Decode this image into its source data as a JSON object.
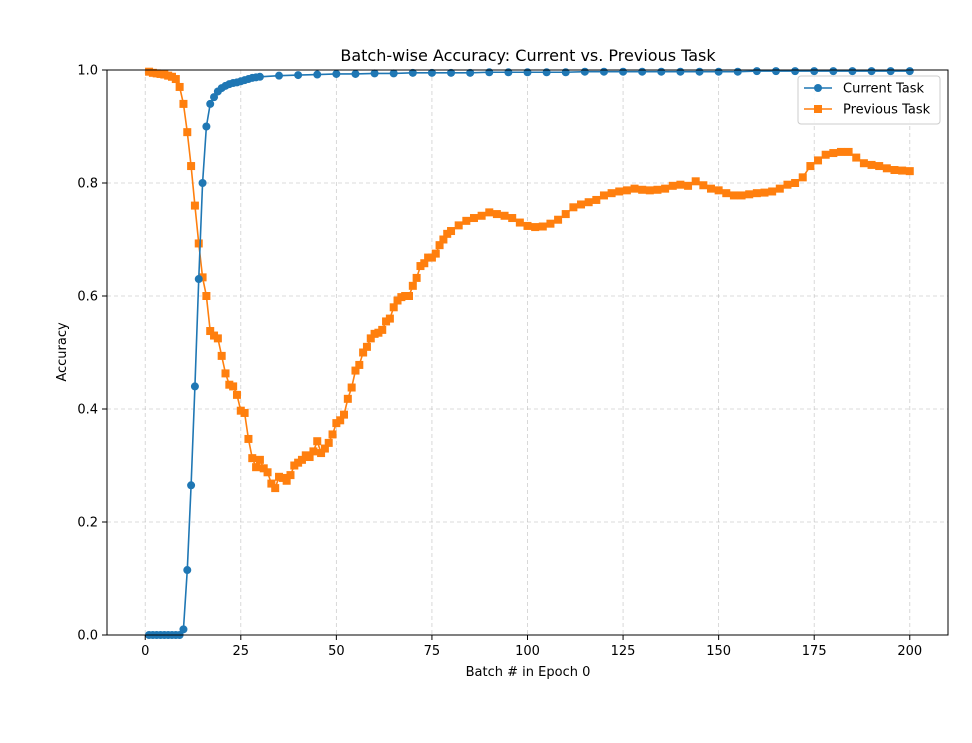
{
  "chart_data": {
    "type": "line",
    "title": "Batch-wise Accuracy: Current vs. Previous Task",
    "xlabel": "Batch # in Epoch 0",
    "ylabel": "Accuracy",
    "xlim": [
      -10,
      210
    ],
    "ylim": [
      0,
      1.0
    ],
    "xticks": [
      0,
      25,
      50,
      75,
      100,
      125,
      150,
      175,
      200
    ],
    "yticks": [
      0.0,
      0.2,
      0.4,
      0.6,
      0.8,
      1.0
    ],
    "xtick_labels": [
      "0",
      "25",
      "50",
      "75",
      "100",
      "125",
      "150",
      "175",
      "200"
    ],
    "ytick_labels": [
      "0.0",
      "0.2",
      "0.4",
      "0.6",
      "0.8",
      "1.0"
    ],
    "grid": true,
    "legend_position": "top-right",
    "series": [
      {
        "name": "Current Task",
        "color": "#1f77b4",
        "marker": "circle",
        "x": [
          1,
          2,
          3,
          4,
          5,
          6,
          7,
          8,
          9,
          10,
          11,
          12,
          13,
          14,
          15,
          16,
          17,
          18,
          19,
          20,
          21,
          22,
          23,
          24,
          25,
          26,
          27,
          28,
          29,
          30,
          35,
          40,
          45,
          50,
          55,
          60,
          65,
          70,
          75,
          80,
          85,
          90,
          95,
          100,
          105,
          110,
          115,
          120,
          125,
          130,
          135,
          140,
          145,
          150,
          155,
          160,
          165,
          170,
          175,
          180,
          185,
          190,
          195,
          200
        ],
        "values": [
          0.0,
          0.0,
          0.0,
          0.0,
          0.0,
          0.0,
          0.0,
          0.0,
          0.0,
          0.01,
          0.115,
          0.265,
          0.44,
          0.63,
          0.8,
          0.9,
          0.94,
          0.952,
          0.962,
          0.968,
          0.972,
          0.975,
          0.977,
          0.978,
          0.98,
          0.982,
          0.984,
          0.986,
          0.987,
          0.988,
          0.99,
          0.991,
          0.992,
          0.993,
          0.993,
          0.994,
          0.994,
          0.995,
          0.995,
          0.995,
          0.995,
          0.996,
          0.996,
          0.996,
          0.996,
          0.996,
          0.997,
          0.997,
          0.997,
          0.997,
          0.997,
          0.997,
          0.997,
          0.997,
          0.997,
          0.998,
          0.998,
          0.998,
          0.998,
          0.998,
          0.998,
          0.998,
          0.998,
          0.998
        ]
      },
      {
        "name": "Previous Task",
        "color": "#ff7f0e",
        "marker": "square",
        "x": [
          1,
          2,
          3,
          4,
          5,
          6,
          7,
          8,
          9,
          10,
          11,
          12,
          13,
          14,
          15,
          16,
          17,
          18,
          19,
          20,
          21,
          22,
          23,
          24,
          25,
          26,
          27,
          28,
          29,
          30,
          31,
          32,
          33,
          34,
          35,
          36,
          37,
          38,
          39,
          40,
          41,
          42,
          43,
          44,
          45,
          46,
          47,
          48,
          49,
          50,
          51,
          52,
          53,
          54,
          55,
          56,
          57,
          58,
          59,
          60,
          61,
          62,
          63,
          64,
          65,
          66,
          67,
          68,
          69,
          70,
          71,
          72,
          73,
          74,
          75,
          76,
          77,
          78,
          79,
          80,
          82,
          84,
          86,
          88,
          90,
          92,
          94,
          96,
          98,
          100,
          102,
          104,
          106,
          108,
          110,
          112,
          114,
          116,
          118,
          120,
          122,
          124,
          126,
          128,
          130,
          132,
          134,
          136,
          138,
          140,
          142,
          144,
          146,
          148,
          150,
          152,
          154,
          156,
          158,
          160,
          162,
          164,
          166,
          168,
          170,
          172,
          174,
          176,
          178,
          180,
          182,
          184,
          186,
          188,
          190,
          192,
          194,
          196,
          198,
          200
        ],
        "values": [
          0.997,
          0.995,
          0.994,
          0.993,
          0.992,
          0.99,
          0.988,
          0.984,
          0.97,
          0.94,
          0.89,
          0.83,
          0.76,
          0.693,
          0.633,
          0.6,
          0.538,
          0.53,
          0.525,
          0.494,
          0.463,
          0.443,
          0.44,
          0.425,
          0.397,
          0.393,
          0.347,
          0.313,
          0.297,
          0.31,
          0.295,
          0.288,
          0.268,
          0.26,
          0.28,
          0.278,
          0.273,
          0.283,
          0.3,
          0.305,
          0.31,
          0.318,
          0.315,
          0.325,
          0.343,
          0.322,
          0.33,
          0.34,
          0.355,
          0.375,
          0.38,
          0.39,
          0.418,
          0.438,
          0.468,
          0.478,
          0.5,
          0.51,
          0.525,
          0.533,
          0.535,
          0.54,
          0.555,
          0.56,
          0.58,
          0.592,
          0.598,
          0.6,
          0.6,
          0.618,
          0.632,
          0.653,
          0.658,
          0.668,
          0.668,
          0.675,
          0.69,
          0.7,
          0.71,
          0.715,
          0.725,
          0.733,
          0.738,
          0.742,
          0.748,
          0.745,
          0.742,
          0.738,
          0.73,
          0.724,
          0.722,
          0.723,
          0.728,
          0.735,
          0.745,
          0.757,
          0.762,
          0.766,
          0.77,
          0.778,
          0.782,
          0.785,
          0.787,
          0.79,
          0.788,
          0.787,
          0.788,
          0.79,
          0.795,
          0.797,
          0.795,
          0.803,
          0.796,
          0.79,
          0.787,
          0.782,
          0.778,
          0.778,
          0.78,
          0.782,
          0.783,
          0.785,
          0.79,
          0.797,
          0.8,
          0.81,
          0.83,
          0.84,
          0.85,
          0.853,
          0.855,
          0.855,
          0.845,
          0.835,
          0.832,
          0.83,
          0.826,
          0.823,
          0.822,
          0.821
        ]
      }
    ]
  }
}
